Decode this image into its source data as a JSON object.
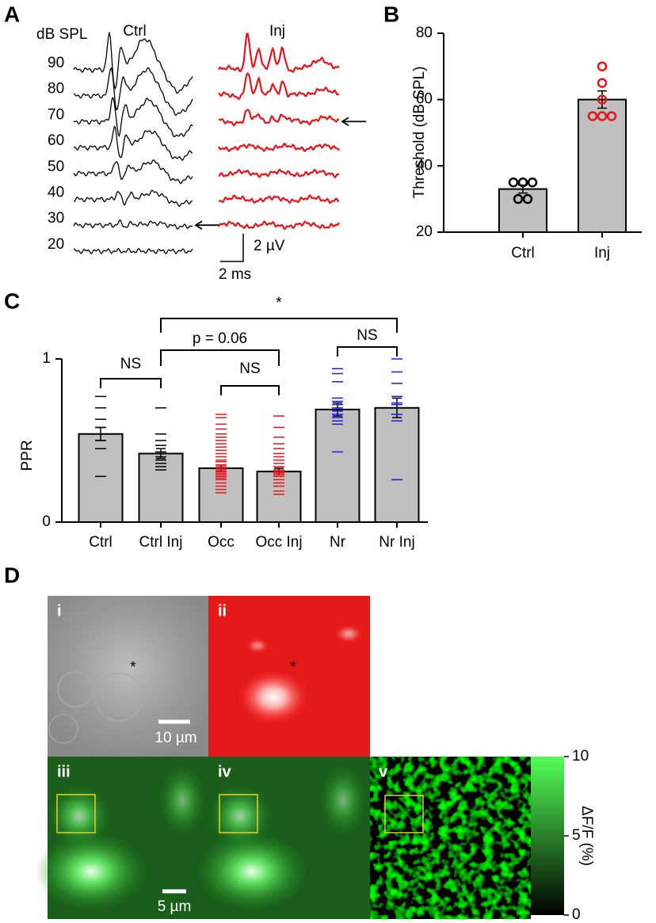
{
  "panel_labels": [
    "A",
    "B",
    "C",
    "D"
  ],
  "abr": {
    "y_label": "dB SPL",
    "traces": [
      {
        "name": "Ctrl",
        "color": "#000000",
        "levels": [
          90,
          80,
          70,
          60,
          50,
          40,
          30,
          20
        ],
        "threshold": 30
      },
      {
        "name": "Inj",
        "color": "#e8141b",
        "levels": [
          90,
          80,
          70,
          60,
          50,
          40,
          30
        ],
        "threshold": 70
      }
    ],
    "scale_y": "2 µV",
    "scale_x": "2 ms"
  },
  "chart_data": [
    {
      "type": "bar",
      "y_label": "Threshold (dB SPL)",
      "categories": [
        "Ctrl",
        "Inj"
      ],
      "values": [
        33,
        60
      ],
      "errors": [
        1.2,
        2.6
      ],
      "points": [
        [
          35,
          35,
          35,
          30,
          30
        ],
        [
          70,
          65,
          60,
          55,
          55,
          55
        ]
      ],
      "point_colors": [
        "#000000",
        "#e8141b"
      ],
      "point_marker": "circle",
      "color": "#c0c0c0",
      "ylim": [
        20,
        80
      ],
      "yticks": [
        20,
        40,
        60,
        80
      ]
    },
    {
      "type": "bar",
      "y_label": "PPR",
      "categories": [
        "Ctrl",
        "Ctrl Inj",
        "Occ",
        "Occ Inj",
        "Nr",
        "Nr Inj"
      ],
      "values": [
        0.54,
        0.42,
        0.33,
        0.31,
        0.69,
        0.7
      ],
      "errors": [
        0.04,
        0.03,
        0.02,
        0.02,
        0.04,
        0.06
      ],
      "points": [
        [
          0.77,
          0.7,
          0.63,
          0.58,
          0.54,
          0.5,
          0.45,
          0.28
        ],
        [
          0.7,
          0.54,
          0.5,
          0.47,
          0.43,
          0.4,
          0.38,
          0.36,
          0.34,
          0.32
        ],
        [
          0.66,
          0.64,
          0.6,
          0.57,
          0.54,
          0.52,
          0.5,
          0.48,
          0.46,
          0.44,
          0.42,
          0.4,
          0.38,
          0.37,
          0.35,
          0.34,
          0.33,
          0.32,
          0.31,
          0.3,
          0.29,
          0.28,
          0.27,
          0.26,
          0.24,
          0.22,
          0.2,
          0.18
        ],
        [
          0.65,
          0.58,
          0.52,
          0.48,
          0.45,
          0.42,
          0.4,
          0.38,
          0.36,
          0.34,
          0.32,
          0.31,
          0.3,
          0.29,
          0.28,
          0.26,
          0.24,
          0.22,
          0.19,
          0.17
        ],
        [
          0.94,
          0.91,
          0.86,
          0.76,
          0.74,
          0.72,
          0.7,
          0.68,
          0.66,
          0.64,
          0.62,
          0.6,
          0.43
        ],
        [
          1.0,
          0.92,
          0.85,
          0.77,
          0.73,
          0.72,
          0.66,
          0.62,
          0.26
        ]
      ],
      "point_colors": [
        "#000000",
        "#000000",
        "#e8141b",
        "#e8141b",
        "#1a1ae0",
        "#1a1ae0"
      ],
      "point_marker": "dash",
      "color": "#c0c0c0",
      "ylim": [
        0,
        1
      ],
      "yticks": [
        0,
        1
      ],
      "brackets": [
        "NS",
        "NS",
        "NS",
        "p = 0.06",
        "*"
      ]
    }
  ],
  "imaging": {
    "images": [
      "i",
      "ii",
      "iii",
      "iv",
      "v"
    ],
    "asterisk": "*",
    "scale_bars": [
      "10 µm",
      "5 µm"
    ],
    "colorbar": {
      "label": "ΔF/F (%)",
      "lim": [
        0,
        10
      ],
      "ticks": [
        0,
        5,
        10
      ]
    }
  }
}
